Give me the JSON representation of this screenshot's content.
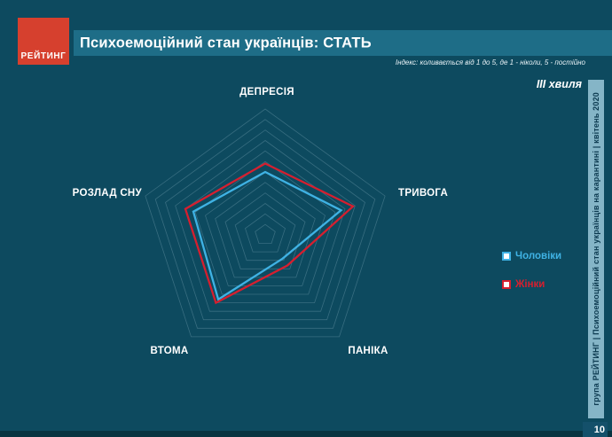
{
  "logo": {
    "text": "РЕЙТИНГ",
    "color": "#d6402e"
  },
  "header": {
    "title": "Психоемоційний стан українців: СТАТЬ",
    "note": "Індекс: коливається від 1 до 5, де 1 - ніколи, 5 - постійно",
    "wave": "ІІІ хвиля"
  },
  "legend": {
    "items": [
      {
        "label": "Чоловіки",
        "color": "#3fb2e4"
      },
      {
        "label": "Жінки",
        "color": "#d61f2f"
      }
    ]
  },
  "sidebar": {
    "text": "група РЕЙТИНГ  |  Психоемоційний стан українців на карантині  |  квітень 2020"
  },
  "footer": {
    "page": "10"
  },
  "colors": {
    "background": "#0d4a5f",
    "title_band": "#1e6d87",
    "gridline": "#7fa8b8",
    "sidebar_bg": "#85b5c7"
  },
  "chart_data": {
    "type": "radar",
    "title": "Психоемоційний стан українців: СТАТЬ",
    "categories": [
      "ДЕПРЕСІЯ",
      "ТРИВОГА",
      "ПАНІКА",
      "ВТОМА",
      "РОЗЛАД СНУ"
    ],
    "series": [
      {
        "name": "Чоловіки",
        "color": "#3fb2e4",
        "values": [
          2.5,
          2.9,
          1.7,
          2.9,
          2.8
        ]
      },
      {
        "name": "Жінки",
        "color": "#d61f2f",
        "values": [
          2.7,
          3.2,
          1.9,
          3.0,
          3.0
        ]
      }
    ],
    "scale": {
      "min": 1,
      "max": 4,
      "ring_step": 0.25
    },
    "legend_position": "right",
    "grid": "concentric-pentagons",
    "note": "Індекс: коливається від 1 до 5, де 1 - ніколи, 5 - постійно"
  }
}
